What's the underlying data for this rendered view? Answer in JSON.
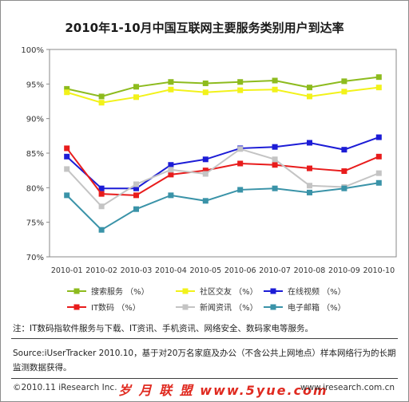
{
  "title": "2010年1-10月中国互联网主要服务类别用户到达率",
  "note": "注：IT数码指软件服务与下载、IT资讯、手机资讯、网络安全、数码家电等服务。",
  "source": "Source:iUserTracker 2010.10，基于对20万名家庭及办公（不含公共上网地点）样本网络行为的长期监测数据获得。",
  "copyright": "©2010.11 iResearch Inc.",
  "watermark": "岁 月 联 盟  www.5yue.com",
  "website": "www.iresearch.com.cn",
  "chart_data": {
    "type": "line",
    "title": "2010年1-10月中国互联网主要服务类别用户到达率",
    "categories": [
      "2010-01",
      "2010-02",
      "2010-03",
      "2010-04",
      "2010-05",
      "2010-06",
      "2010-07",
      "2010-08",
      "2010-09",
      "2010-10"
    ],
    "y_ticks": [
      "100%",
      "95%",
      "90%",
      "85%",
      "80%",
      "75%",
      "70%"
    ],
    "ylim": [
      70,
      100
    ],
    "grid": false,
    "legend_position": "bottom",
    "series": [
      {
        "name": "搜索服务 （%）",
        "color": "#8dbb1e",
        "values": [
          94.3,
          93.2,
          94.6,
          95.3,
          95.1,
          95.3,
          95.5,
          94.5,
          95.4,
          96.0
        ]
      },
      {
        "name": "社区交友 （%）",
        "color": "#f2f21a",
        "values": [
          93.8,
          92.3,
          93.1,
          94.2,
          93.8,
          94.1,
          94.2,
          93.2,
          93.9,
          94.5
        ]
      },
      {
        "name": "在线视频 （%）",
        "color": "#1c1cd6",
        "values": [
          84.5,
          79.9,
          79.9,
          83.3,
          84.1,
          85.7,
          85.9,
          86.5,
          85.5,
          87.3
        ]
      },
      {
        "name": "IT数码 （%）",
        "color": "#e81c1c",
        "values": [
          85.7,
          79.1,
          78.9,
          81.9,
          82.5,
          83.5,
          83.3,
          82.8,
          82.4,
          84.5
        ]
      },
      {
        "name": "新闻资讯 （%）",
        "color": "#c4c4c4",
        "values": [
          82.7,
          77.3,
          80.5,
          82.6,
          82.0,
          85.6,
          84.1,
          80.3,
          80.1,
          82.1
        ]
      },
      {
        "name": "电子邮箱 （%）",
        "color": "#3a93a8",
        "values": [
          78.9,
          73.9,
          76.9,
          78.9,
          78.1,
          79.7,
          79.9,
          79.3,
          79.9,
          80.7
        ]
      }
    ]
  }
}
